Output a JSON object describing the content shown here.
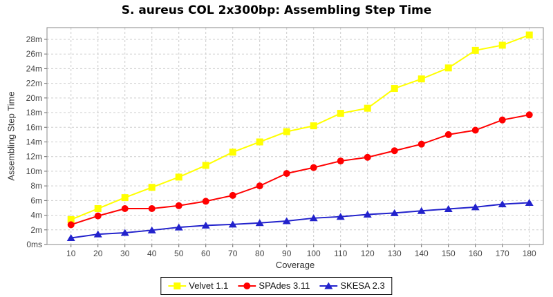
{
  "chart_data": {
    "type": "line",
    "title": "S. aureus COL 2x300bp: Assembling Step Time",
    "xlabel": "Coverage",
    "ylabel": "Assembling Step Time",
    "unit": "minutes",
    "grid": true,
    "legend_position": "bottom",
    "x": [
      10,
      20,
      30,
      40,
      50,
      60,
      70,
      80,
      90,
      100,
      110,
      120,
      130,
      140,
      150,
      160,
      170,
      180
    ],
    "xlim": [
      1.1,
      185.2
    ],
    "ylim": [
      0,
      29.6
    ],
    "y_tick_values": [
      0,
      2,
      4,
      6,
      8,
      10,
      12,
      14,
      16,
      18,
      20,
      22,
      24,
      26,
      28
    ],
    "y_tick_labels": [
      "0ms",
      "2m",
      "4m",
      "6m",
      "8m",
      "10m",
      "12m",
      "14m",
      "16m",
      "18m",
      "20m",
      "22m",
      "24m",
      "26m",
      "28m"
    ],
    "series": [
      {
        "name": "Velvet 1.1",
        "color": "#ffff00",
        "marker": "square",
        "values": [
          3.4,
          4.9,
          6.4,
          7.8,
          9.2,
          10.8,
          12.6,
          14.0,
          15.4,
          16.2,
          17.9,
          18.6,
          21.3,
          22.6,
          24.1,
          26.5,
          27.2,
          28.6
        ]
      },
      {
        "name": "SPAdes 3.11",
        "color": "#ff0000",
        "marker": "circle",
        "values": [
          2.7,
          3.9,
          4.9,
          4.9,
          5.3,
          5.9,
          6.7,
          8.0,
          9.7,
          10.5,
          11.4,
          11.9,
          12.8,
          13.7,
          15.0,
          15.6,
          17.0,
          17.7
        ]
      },
      {
        "name": "SKESA 2.3",
        "color": "#2222cc",
        "marker": "triangle",
        "values": [
          0.9,
          1.4,
          1.6,
          1.95,
          2.35,
          2.6,
          2.75,
          2.95,
          3.2,
          3.6,
          3.8,
          4.1,
          4.3,
          4.6,
          4.85,
          5.1,
          5.5,
          5.7
        ]
      }
    ]
  }
}
